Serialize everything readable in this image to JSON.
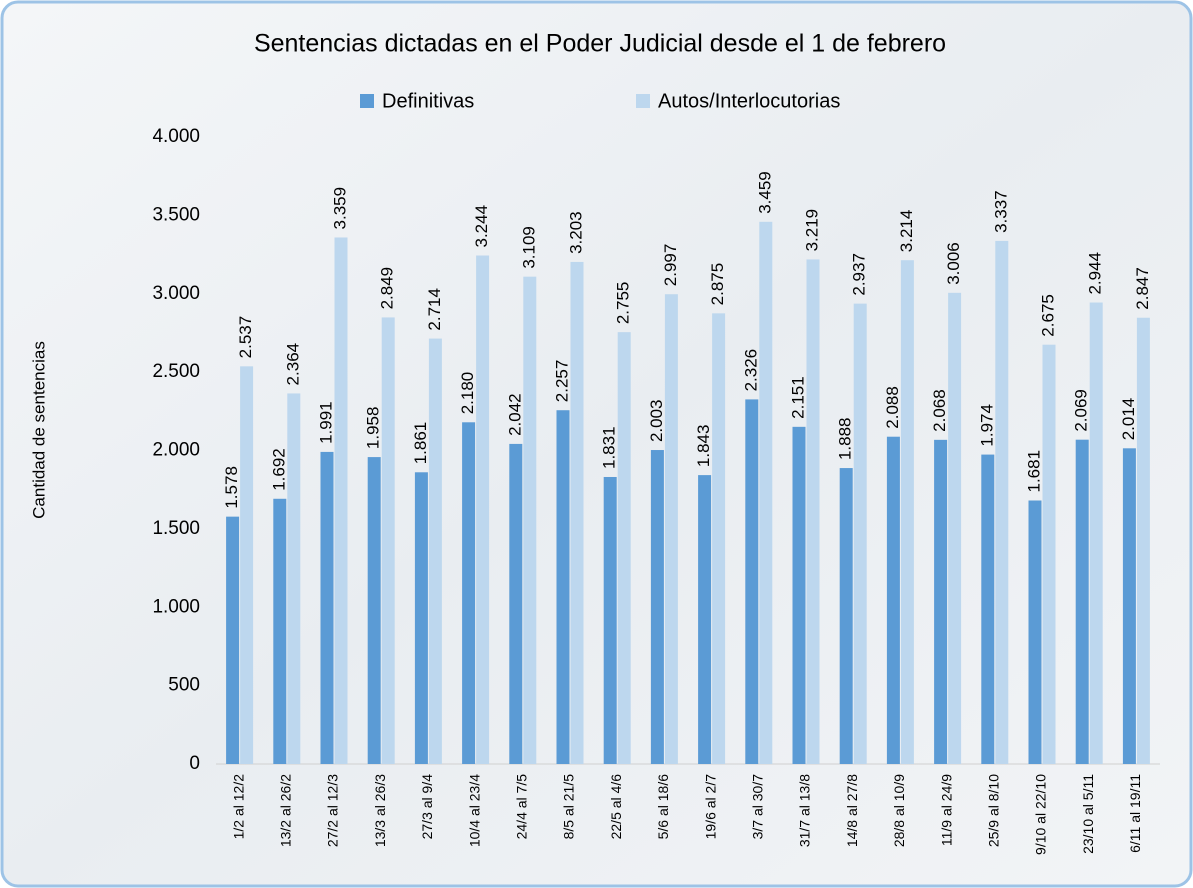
{
  "chart_data": {
    "type": "bar",
    "title": "Sentencias dictadas en el Poder Judicial desde el 1 de febrero",
    "y_label": "Cantidad de sentencias",
    "categories": [
      "1/2 al 12/2",
      "13/2 al 26/2",
      "27/2 al 12/3",
      "13/3 al 26/3",
      "27/3 al 9/4",
      "10/4 al 23/4",
      "24/4 al 7/5",
      "8/5 al 21/5",
      "22/5 al 4/6",
      "5/6 al 18/6",
      "19/6 al 2/7",
      "3/7 al 30/7",
      "31/7 al 13/8",
      "14/8 al 27/8",
      "28/8 al 10/9",
      "11/9 al 24/9",
      "25/9 al 8/10",
      "9/10 al 22/10",
      "23/10 al 5/11",
      "6/11 al 19/11"
    ],
    "series": [
      {
        "name": "Definitivas",
        "color": "#5b9bd5",
        "values": [
          1578,
          1692,
          1991,
          1958,
          1861,
          2180,
          2042,
          2257,
          1831,
          2003,
          1843,
          2326,
          2151,
          1888,
          2088,
          2068,
          1974,
          1681,
          2069,
          2014
        ],
        "value_labels": [
          "1.578",
          "1.692",
          "1.991",
          "1.958",
          "1.861",
          "2.180",
          "2.042",
          "2.257",
          "1.831",
          "2.003",
          "1.843",
          "2.326",
          "2.151",
          "1.888",
          "2.088",
          "2.068",
          "1.974",
          "1.681",
          "2.069",
          "2.014"
        ]
      },
      {
        "name": "Autos/Interlocutorias",
        "color": "#bdd7ee",
        "values": [
          2537,
          2364,
          3359,
          2849,
          2714,
          3244,
          3109,
          3203,
          2755,
          2997,
          2875,
          3459,
          3219,
          2937,
          3214,
          3006,
          3337,
          2675,
          2944,
          2847
        ],
        "value_labels": [
          "2.537",
          "2.364",
          "3.359",
          "2.849",
          "2.714",
          "3.244",
          "3.109",
          "3.203",
          "2.755",
          "2.997",
          "2.875",
          "3.459",
          "3.219",
          "2.937",
          "3.214",
          "3.006",
          "3.337",
          "2.675",
          "2.944",
          "2.847"
        ]
      }
    ],
    "ylim": [
      0,
      4000
    ],
    "yticks": [
      0,
      500,
      {
        "value": 1000,
        "label": "1.000"
      },
      {
        "value": 1500,
        "label": "1.500"
      },
      {
        "value": 2000,
        "label": "2.000"
      },
      {
        "value": 2500,
        "label": "2.500"
      },
      {
        "value": 3000,
        "label": "3.000"
      },
      {
        "value": 3500,
        "label": "3.500"
      },
      {
        "value": 4000,
        "label": "4.000"
      }
    ],
    "legend": "top"
  }
}
